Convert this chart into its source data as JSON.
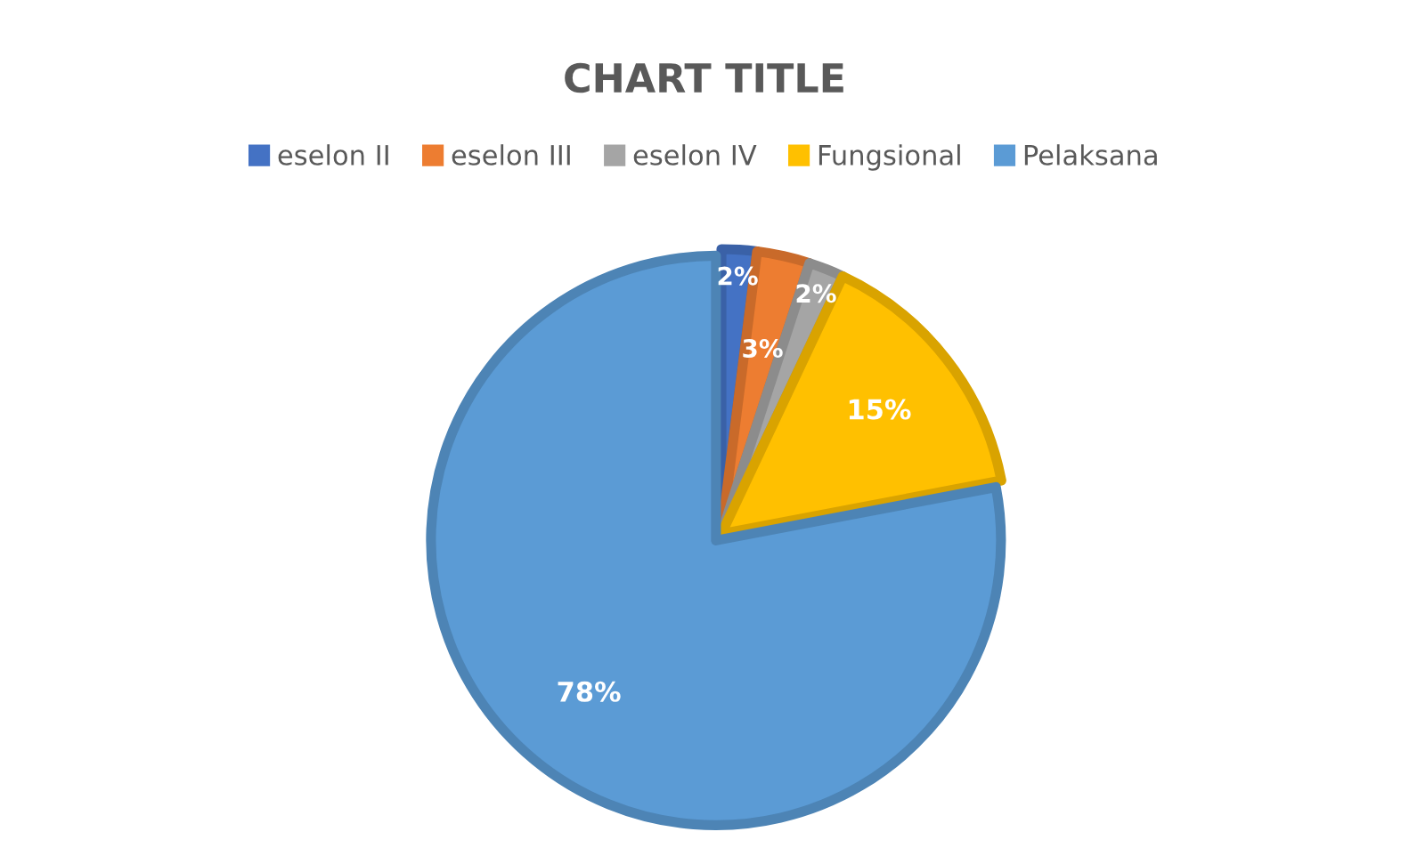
{
  "chart_data": {
    "type": "pie",
    "title": "CHART TITLE",
    "categories": [
      "eselon II",
      "eselon III",
      "eselon IV",
      "Fungsional",
      "Pelaksana"
    ],
    "values": [
      2,
      3,
      2,
      15,
      78
    ],
    "colors": [
      "#4472c4",
      "#ed7d31",
      "#a5a5a5",
      "#ffc000",
      "#5b9bd5"
    ],
    "value_labels": [
      "2%",
      "3%",
      "2%",
      "15%",
      "78%"
    ],
    "legend": "top"
  }
}
